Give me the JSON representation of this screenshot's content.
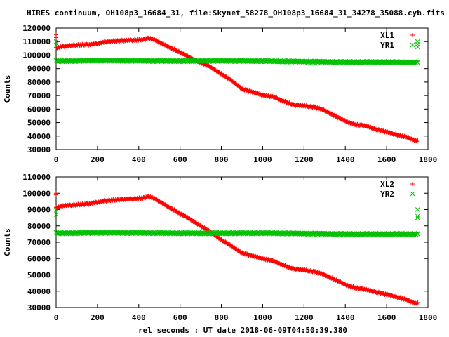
{
  "title": "HIRES continuum, OH108p3_16684_31, file:Skynet_58278_OH108p3_16684_31_34278_35088.cyb.fits",
  "xlabel": "rel seconds : UT date 2018-06-09T04:50:39.380",
  "colors": {
    "red": "#ff0000",
    "green": "#00c000",
    "axis": "#000000"
  },
  "chart_data": [
    {
      "type": "scatter",
      "ylabel": "Counts",
      "xlim": [
        0,
        1800
      ],
      "ylim": [
        30000,
        120000
      ],
      "xticks": [
        0,
        200,
        400,
        600,
        800,
        1000,
        1200,
        1400,
        1600,
        1800
      ],
      "yticks": [
        30000,
        40000,
        50000,
        60000,
        70000,
        80000,
        90000,
        100000,
        110000,
        120000
      ],
      "legend": "top-right",
      "series": [
        {
          "name": "XL1",
          "marker": "+",
          "color": "#ff0000",
          "points": [
            [
              0,
              105000
            ],
            [
              20,
              106000
            ],
            [
              60,
              107000
            ],
            [
              100,
              107500
            ],
            [
              160,
              107700
            ],
            [
              200,
              108500
            ],
            [
              240,
              110000
            ],
            [
              300,
              110500
            ],
            [
              360,
              111000
            ],
            [
              420,
              111500
            ],
            [
              450,
              112500
            ],
            [
              480,
              111000
            ],
            [
              520,
              108000
            ],
            [
              560,
              105000
            ],
            [
              600,
              102000
            ],
            [
              650,
              98000
            ],
            [
              700,
              94500
            ],
            [
              750,
              91000
            ],
            [
              800,
              86000
            ],
            [
              850,
              81000
            ],
            [
              900,
              75000
            ],
            [
              950,
              72500
            ],
            [
              1000,
              70500
            ],
            [
              1050,
              69000
            ],
            [
              1100,
              66000
            ],
            [
              1150,
              63000
            ],
            [
              1200,
              62500
            ],
            [
              1250,
              61500
            ],
            [
              1300,
              59000
            ],
            [
              1350,
              55000
            ],
            [
              1400,
              51000
            ],
            [
              1450,
              48500
            ],
            [
              1500,
              47500
            ],
            [
              1550,
              45000
            ],
            [
              1600,
              43000
            ],
            [
              1650,
              41000
            ],
            [
              1700,
              39000
            ],
            [
              1740,
              36500
            ],
            [
              1750,
              36500
            ]
          ],
          "outliers": [
            [
              0,
              115000
            ],
            [
              0,
              113000
            ],
            [
              1750,
              37000
            ]
          ]
        },
        {
          "name": "YR1",
          "marker": "x",
          "color": "#00c000",
          "points": [
            [
              0,
              95500
            ],
            [
              200,
              96000
            ],
            [
              400,
              95800
            ],
            [
              600,
              95600
            ],
            [
              800,
              95800
            ],
            [
              1000,
              95600
            ],
            [
              1200,
              95200
            ],
            [
              1400,
              94800
            ],
            [
              1600,
              94800
            ],
            [
              1750,
              94500
            ]
          ],
          "outliers": [
            [
              0,
              110000
            ],
            [
              0,
              107000
            ],
            [
              1750,
              110000
            ],
            [
              1750,
              108000
            ],
            [
              1750,
              106000
            ]
          ]
        }
      ]
    },
    {
      "type": "scatter",
      "ylabel": "Counts",
      "xlim": [
        0,
        1800
      ],
      "ylim": [
        30000,
        110000
      ],
      "xticks": [
        0,
        200,
        400,
        600,
        800,
        1000,
        1200,
        1400,
        1600,
        1800
      ],
      "yticks": [
        30000,
        40000,
        50000,
        60000,
        70000,
        80000,
        90000,
        100000,
        110000
      ],
      "legend": "top-right",
      "series": [
        {
          "name": "XL2",
          "marker": "+",
          "color": "#ff0000",
          "points": [
            [
              0,
              91000
            ],
            [
              40,
              92500
            ],
            [
              100,
              93000
            ],
            [
              160,
              93500
            ],
            [
              200,
              94500
            ],
            [
              240,
              95500
            ],
            [
              300,
              96000
            ],
            [
              360,
              96500
            ],
            [
              420,
              97000
            ],
            [
              450,
              98000
            ],
            [
              480,
              96500
            ],
            [
              520,
              93500
            ],
            [
              560,
              90500
            ],
            [
              600,
              87500
            ],
            [
              650,
              84000
            ],
            [
              700,
              80000
            ],
            [
              750,
              76000
            ],
            [
              800,
              71500
            ],
            [
              850,
              67500
            ],
            [
              900,
              63500
            ],
            [
              950,
              61500
            ],
            [
              1000,
              60000
            ],
            [
              1050,
              58500
            ],
            [
              1100,
              56000
            ],
            [
              1150,
              53500
            ],
            [
              1200,
              53000
            ],
            [
              1250,
              52000
            ],
            [
              1300,
              50000
            ],
            [
              1350,
              47000
            ],
            [
              1400,
              44000
            ],
            [
              1450,
              42000
            ],
            [
              1500,
              41000
            ],
            [
              1550,
              39500
            ],
            [
              1600,
              38000
            ],
            [
              1650,
              36500
            ],
            [
              1700,
              34500
            ],
            [
              1740,
              32500
            ],
            [
              1750,
              32500
            ]
          ],
          "outliers": [
            [
              0,
              100000
            ],
            [
              0,
              99000
            ],
            [
              1750,
              33000
            ]
          ]
        },
        {
          "name": "YR2",
          "marker": "x",
          "color": "#00c000",
          "points": [
            [
              0,
              75500
            ],
            [
              200,
              75800
            ],
            [
              400,
              75700
            ],
            [
              600,
              75500
            ],
            [
              800,
              75500
            ],
            [
              1000,
              75600
            ],
            [
              1200,
              75300
            ],
            [
              1400,
              75000
            ],
            [
              1600,
              75000
            ],
            [
              1750,
              75000
            ]
          ],
          "outliers": [
            [
              0,
              90000
            ],
            [
              0,
              87000
            ],
            [
              1750,
              90000
            ],
            [
              1750,
              86000
            ],
            [
              1750,
              85000
            ]
          ]
        }
      ]
    }
  ]
}
